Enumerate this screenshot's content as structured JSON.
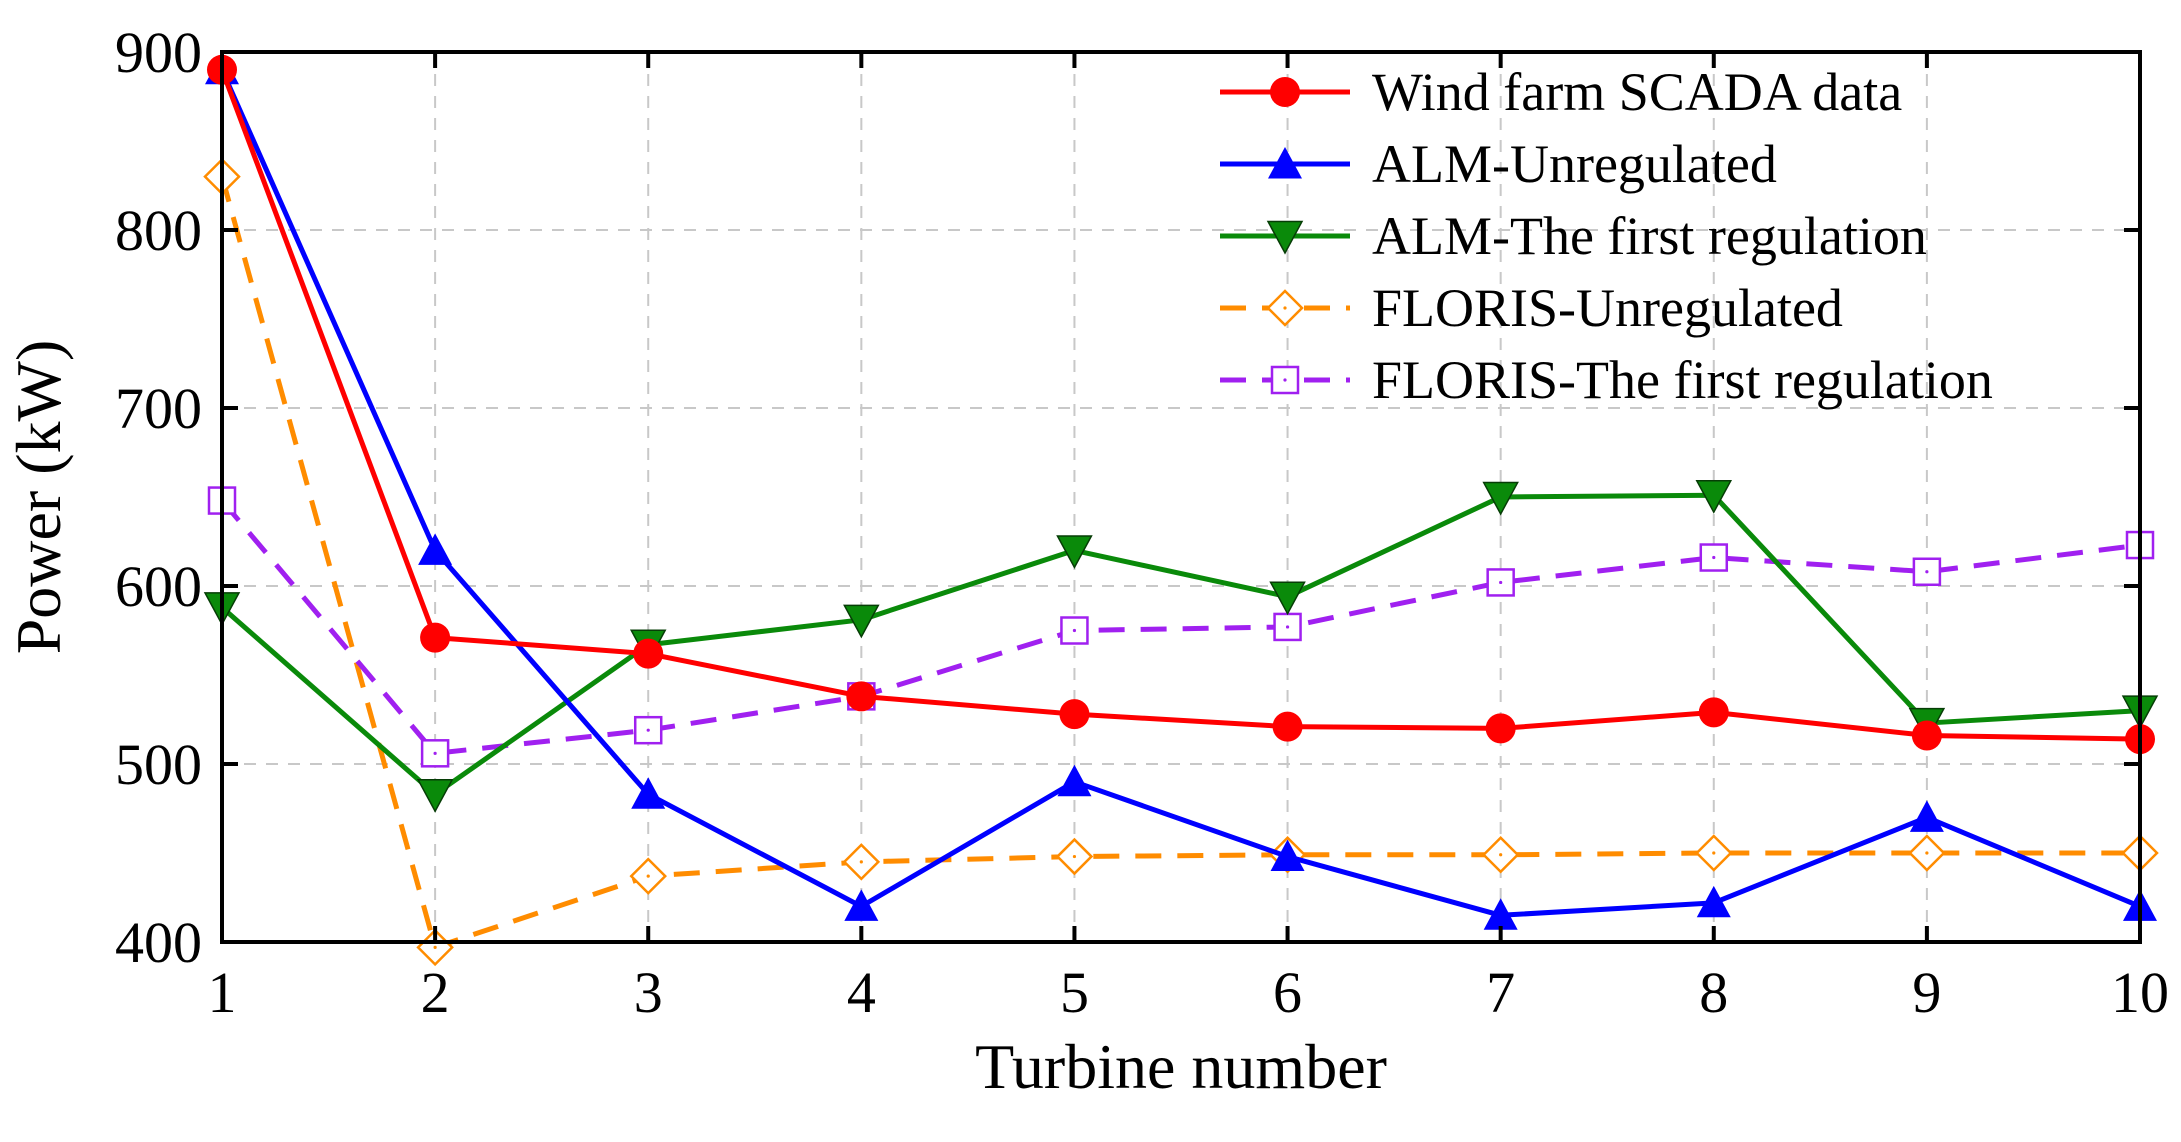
{
  "chart_data": {
    "type": "line",
    "xlabel": "Turbine number",
    "ylabel": "Power (kW)",
    "xlim": [
      1,
      10
    ],
    "ylim": [
      400,
      900
    ],
    "x": [
      1,
      2,
      3,
      4,
      5,
      6,
      7,
      8,
      9,
      10
    ],
    "xticks": [
      "1",
      "2",
      "3",
      "4",
      "5",
      "6",
      "7",
      "8",
      "9",
      "10"
    ],
    "yticks": [
      "400",
      "500",
      "600",
      "700",
      "800",
      "900"
    ],
    "grid": true,
    "legend_position": "top-right",
    "series": [
      {
        "name": "Wind farm SCADA data",
        "color": "#ff0000",
        "marker": "circle",
        "dash": false,
        "values": [
          890,
          571,
          562,
          538,
          528,
          521,
          520,
          529,
          516,
          514
        ]
      },
      {
        "name": "ALM-Unregulated",
        "color": "#0000ff",
        "marker": "triangle-up",
        "dash": false,
        "values": [
          890,
          620,
          483,
          420,
          490,
          448,
          415,
          422,
          470,
          420
        ]
      },
      {
        "name": "ALM-The first regulation",
        "color": "#0a8a0a",
        "marker": "triangle-down",
        "dash": false,
        "values": [
          588,
          483,
          567,
          581,
          620,
          594,
          650,
          651,
          523,
          530
        ]
      },
      {
        "name": "FLORIS-Unregulated",
        "color": "#ff8c00",
        "marker": "diamond-open",
        "dash": true,
        "values": [
          830,
          397,
          437,
          445,
          448,
          449,
          449,
          450,
          450,
          450
        ]
      },
      {
        "name": "FLORIS-The first regulation",
        "color": "#a020f0",
        "marker": "square-open",
        "dash": true,
        "values": [
          648,
          506,
          519,
          538,
          575,
          577,
          602,
          616,
          608,
          623
        ]
      }
    ]
  }
}
